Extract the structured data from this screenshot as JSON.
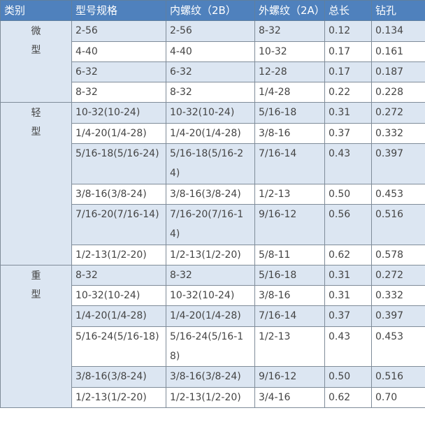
{
  "colors": {
    "header_bg": "#4f81bd",
    "band_bg": "#dce6f2",
    "header_text": "#ffffff"
  },
  "headers": [
    "类别",
    "型号规格",
    "内螺纹（2B）",
    "外螺纹（2A）",
    "总长",
    "钻孔"
  ],
  "groups": [
    {
      "category": "微型",
      "rows": [
        [
          "2-56",
          "2-56",
          "8-32",
          "0.12",
          "0.134"
        ],
        [
          "4-40",
          "4-40",
          "10-32",
          "0.17",
          "0.161"
        ],
        [
          "6-32",
          "6-32",
          "12-28",
          "0.17",
          "0.187"
        ],
        [
          "8-32",
          "8-32",
          "1/4-28",
          "0.22",
          "0.228"
        ]
      ]
    },
    {
      "category": "轻型",
      "rows": [
        [
          "10-32(10-24)",
          "10-32(10-24)",
          "5/16-18",
          "0.31",
          "0.272"
        ],
        [
          "1/4-20(1/4-28)",
          "1/4-20(1/4-28)",
          "3/8-16",
          "0.37",
          "0.332"
        ],
        [
          "5/16-18(5/16-24)",
          "5/16-18(5/16-24)",
          "7/16-14",
          "0.43",
          "0.397"
        ],
        [
          "3/8-16(3/8-24)",
          "3/8-16(3/8-24)",
          "1/2-13",
          "0.50",
          "0.453"
        ],
        [
          "7/16-20(7/16-14)",
          "7/16-20(7/16-14)",
          "9/16-12",
          "0.56",
          "0.516"
        ],
        [
          "1/2-13(1/2-20)",
          "1/2-13(1/2-20)",
          "5/8-11",
          "0.62",
          "0.578"
        ]
      ]
    },
    {
      "category": "重型",
      "rows": [
        [
          "8-32",
          "8-32",
          "5/16-18",
          "0.31",
          "0.272"
        ],
        [
          "10-32(10-24)",
          "10-32(10-24)",
          "3/8-16",
          "0.31",
          "0.332"
        ],
        [
          "1/4-20(1/4-28)",
          "1/4-20(1/4-28)",
          "7/16-14",
          "0.37",
          "0.397"
        ],
        [
          "5/16-24(5/16-18)",
          "5/16-24(5/16-18)",
          "1/2-13",
          "0.43",
          "0.453"
        ],
        [
          "3/8-16(3/8-24)",
          "3/8-16(3/8-24)",
          "9/16-12",
          "0.50",
          "0.516"
        ],
        [
          "1/2-13(1/2-20)",
          "1/2-13(1/2-20)",
          "3/4-16",
          "0.62",
          "0.70"
        ]
      ]
    }
  ]
}
